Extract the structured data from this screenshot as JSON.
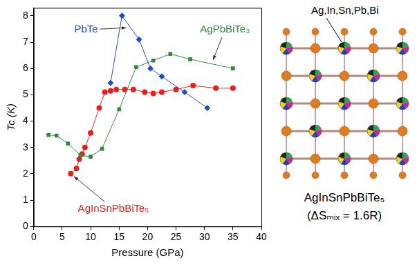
{
  "chart_data": {
    "type": "scatter",
    "x_label": "Pressure (GPa)",
    "y_label": "Tc (K)",
    "xlim": [
      0,
      40
    ],
    "xticks": [
      0,
      5,
      10,
      15,
      20,
      25,
      30,
      35,
      40
    ],
    "ylim": [
      0,
      8.3
    ],
    "yticks": [
      0,
      1,
      2,
      3,
      4,
      5,
      6,
      7,
      8
    ],
    "grid": false,
    "line_style": "solid",
    "series": [
      {
        "name": "PbTe",
        "color": "#1f4fc8",
        "marker": "diamond",
        "x": [
          13.5,
          15.5,
          18.5,
          20.5,
          22.5,
          26.5,
          30.5
        ],
        "values": [
          5.45,
          8.0,
          7.1,
          6.0,
          5.7,
          5.1,
          4.5
        ]
      },
      {
        "name": "AgPbBiTe₃",
        "color": "#2e8b3c",
        "marker": "square",
        "x": [
          2.6,
          4,
          6,
          8.2,
          10,
          12,
          15,
          18,
          21,
          24,
          27.5,
          35
        ],
        "values": [
          3.47,
          3.45,
          3.15,
          2.7,
          2.65,
          2.95,
          4.45,
          6.05,
          6.3,
          6.55,
          6.35,
          6.0
        ]
      },
      {
        "name": "AgInSnPbBiTe₅",
        "color": "#e8201c",
        "marker": "circle",
        "x": [
          6.5,
          7.5,
          8,
          8.5,
          9,
          10,
          11.5,
          12.5,
          13.5,
          14.5,
          16,
          17.5,
          19.5,
          21,
          22.5,
          25,
          28,
          32,
          35
        ],
        "values": [
          2.0,
          2.2,
          2.55,
          2.75,
          3.0,
          3.55,
          4.5,
          5.1,
          5.15,
          5.2,
          5.2,
          5.2,
          5.1,
          5.05,
          5.1,
          5.2,
          5.35,
          5.25,
          5.25
        ]
      }
    ]
  },
  "structure": {
    "site_label": "Ag,In,Sn,Pb,Bi",
    "formula": "AgInSnPbBiTe₅",
    "entropy": "(ΔSₘᵢₓ = 1.6R)"
  }
}
